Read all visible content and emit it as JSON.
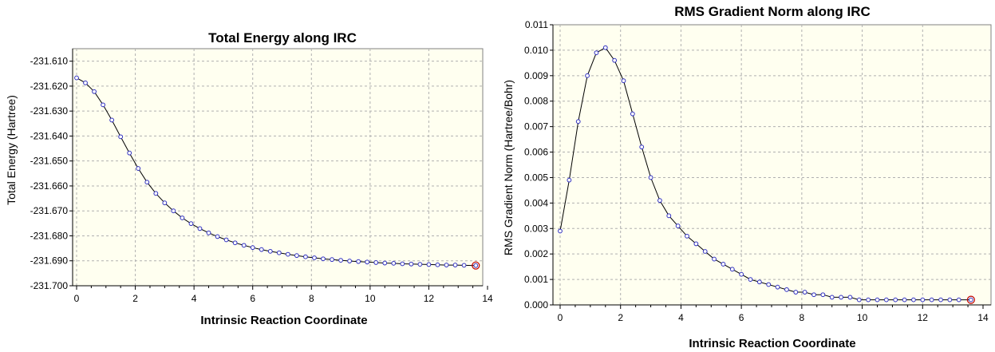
{
  "colors": {
    "plot_background": "#fffff0",
    "point_stroke": "#3030c0",
    "highlight": "#c00000",
    "grid": "#b0b0b0"
  },
  "chart_data": [
    {
      "type": "line",
      "title": "Total Energy along IRC",
      "xlabel": "Intrinsic Reaction Coordinate",
      "ylabel": "Total Energy (Hartree)",
      "xlim": [
        0,
        14
      ],
      "ylim": [
        -231.7,
        -231.605
      ],
      "x_ticks": [
        "0",
        "2",
        "4",
        "6",
        "8",
        "10",
        "12",
        "14"
      ],
      "y_ticks": [
        "-231.610",
        "-231.620",
        "-231.630",
        "-231.640",
        "-231.650",
        "-231.660",
        "-231.670",
        "-231.680",
        "-231.690",
        "-231.700"
      ],
      "grid": true,
      "highlight_last_point": true,
      "series": [
        {
          "x": [
            0,
            0.3,
            0.6,
            0.9,
            1.2,
            1.5,
            1.8,
            2.1,
            2.4,
            2.7,
            3.0,
            3.3,
            3.6,
            3.9,
            4.2,
            4.5,
            4.8,
            5.1,
            5.4,
            5.7,
            6.0,
            6.3,
            6.6,
            6.9,
            7.2,
            7.5,
            7.8,
            8.1,
            8.4,
            8.7,
            9.0,
            9.3,
            9.6,
            9.9,
            10.2,
            10.5,
            10.8,
            11.1,
            11.4,
            11.7,
            12.0,
            12.3,
            12.6,
            12.9,
            13.2,
            13.6
          ],
          "y": [
            -231.6167,
            -231.6187,
            -231.6222,
            -231.6275,
            -231.6336,
            -231.6403,
            -231.6468,
            -231.653,
            -231.6585,
            -231.663,
            -231.6668,
            -231.67,
            -231.6728,
            -231.6751,
            -231.6771,
            -231.6788,
            -231.6803,
            -231.6816,
            -231.6828,
            -231.6838,
            -231.6847,
            -231.6855,
            -231.6862,
            -231.6868,
            -231.6874,
            -231.6879,
            -231.6884,
            -231.6888,
            -231.6892,
            -231.6895,
            -231.6898,
            -231.6901,
            -231.6903,
            -231.6905,
            -231.6907,
            -231.6909,
            -231.691,
            -231.6912,
            -231.6913,
            -231.6914,
            -231.6915,
            -231.6916,
            -231.6917,
            -231.6917,
            -231.6918,
            -231.6919
          ]
        }
      ]
    },
    {
      "type": "line",
      "title": "RMS Gradient Norm along IRC",
      "xlabel": "Intrinsic Reaction Coordinate",
      "ylabel": "RMS Gradient Norm (Hartree/Bohr)",
      "xlim": [
        0,
        14
      ],
      "ylim": [
        0.0,
        0.011
      ],
      "x_ticks": [
        "0",
        "2",
        "4",
        "6",
        "8",
        "10",
        "12",
        "14"
      ],
      "y_ticks": [
        "0.000",
        "0.001",
        "0.002",
        "0.003",
        "0.004",
        "0.005",
        "0.006",
        "0.007",
        "0.008",
        "0.009",
        "0.010",
        "0.011"
      ],
      "grid": true,
      "highlight_last_point": true,
      "series": [
        {
          "x": [
            0,
            0.3,
            0.6,
            0.9,
            1.2,
            1.5,
            1.8,
            2.1,
            2.4,
            2.7,
            3.0,
            3.3,
            3.6,
            3.9,
            4.2,
            4.5,
            4.8,
            5.1,
            5.4,
            5.7,
            6.0,
            6.3,
            6.6,
            6.9,
            7.2,
            7.5,
            7.8,
            8.1,
            8.4,
            8.7,
            9.0,
            9.3,
            9.6,
            9.9,
            10.2,
            10.5,
            10.8,
            11.1,
            11.4,
            11.7,
            12.0,
            12.3,
            12.6,
            12.9,
            13.2,
            13.6
          ],
          "y": [
            0.0029,
            0.0049,
            0.0072,
            0.009,
            0.0099,
            0.0101,
            0.0096,
            0.0088,
            0.0075,
            0.0062,
            0.005,
            0.0041,
            0.0035,
            0.0031,
            0.0027,
            0.0024,
            0.0021,
            0.0018,
            0.0016,
            0.0014,
            0.0012,
            0.001,
            0.0009,
            0.0008,
            0.0007,
            0.0006,
            0.0005,
            0.0005,
            0.0004,
            0.0004,
            0.0003,
            0.0003,
            0.0003,
            0.0002,
            0.0002,
            0.0002,
            0.0002,
            0.0002,
            0.0002,
            0.0002,
            0.0002,
            0.0002,
            0.0002,
            0.0002,
            0.0002,
            0.0002
          ]
        }
      ]
    }
  ]
}
